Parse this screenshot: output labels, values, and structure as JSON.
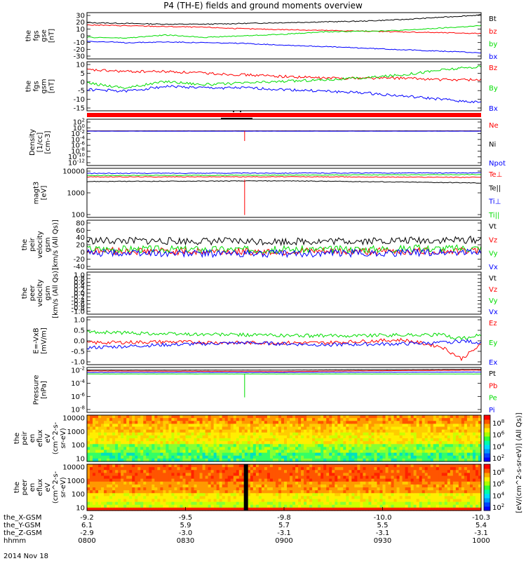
{
  "title": "P4 (TH-E) fields and ground moments overview",
  "date_label": "2014 Nov 18",
  "orbit_rows": [
    {
      "label": "the_X-GSM",
      "values": [
        "-9.2",
        "-9.5",
        "-9.8",
        "-10.0",
        "-10.3"
      ]
    },
    {
      "label": "the_Y-GSM",
      "values": [
        "6.1",
        "5.9",
        "5.7",
        "5.5",
        "5.4"
      ]
    },
    {
      "label": "the_Z-GSM",
      "values": [
        "-2.9",
        "-3.0",
        "-3.1",
        "-3.1",
        "-3.1"
      ]
    },
    {
      "label": "hhmm",
      "values": [
        "0800",
        "0830",
        "0900",
        "0930",
        "1000"
      ]
    }
  ],
  "chart_data": [
    {
      "type": "line",
      "panel": "fgs_gse",
      "ylabel": [
        "the",
        "fgs",
        "gse",
        "[nT]"
      ],
      "ylim": [
        -30,
        30
      ],
      "yticks": [
        "30",
        "20",
        "10",
        "0",
        "-10",
        "-20",
        "-30"
      ],
      "series": [
        {
          "name": "Bt",
          "color": "#000000",
          "x": [
            0,
            0.1,
            0.2,
            0.3,
            0.4,
            0.5,
            0.6,
            0.7,
            0.8,
            0.9,
            1.0
          ],
          "values": [
            17,
            16,
            15,
            15,
            16,
            17,
            18,
            19,
            21,
            24,
            27
          ]
        },
        {
          "name": "bz",
          "color": "#ff0000",
          "x": [
            0,
            0.1,
            0.2,
            0.3,
            0.4,
            0.5,
            0.6,
            0.7,
            0.8,
            0.9,
            1.0
          ],
          "values": [
            14,
            13,
            12,
            11,
            9,
            8,
            7,
            6,
            5,
            4,
            3
          ]
        },
        {
          "name": "by",
          "color": "#00dd00",
          "x": [
            0,
            0.1,
            0.2,
            0.3,
            0.4,
            0.5,
            0.6,
            0.7,
            0.8,
            0.9,
            1.0
          ],
          "values": [
            -2,
            -3,
            1,
            -2,
            0,
            2,
            5,
            6,
            7,
            10,
            13
          ]
        },
        {
          "name": "bx",
          "color": "#0000ff",
          "x": [
            0,
            0.1,
            0.2,
            0.3,
            0.4,
            0.5,
            0.6,
            0.7,
            0.8,
            0.9,
            1.0
          ],
          "values": [
            -7,
            -9,
            -8,
            -9,
            -10,
            -12,
            -14,
            -16,
            -18,
            -20,
            -22
          ]
        }
      ]
    },
    {
      "type": "line",
      "panel": "fgs_gsm",
      "ylabel": [
        "the",
        "fgs",
        "gsm",
        "[nT]"
      ],
      "ylim": [
        -18,
        12
      ],
      "yticks": [
        "10",
        "5",
        "0",
        "-5",
        "-10",
        "-15"
      ],
      "series": [
        {
          "name": "Bz",
          "color": "#ff0000",
          "x": [
            0,
            0.1,
            0.2,
            0.3,
            0.4,
            0.5,
            0.6,
            0.7,
            0.8,
            0.9,
            1.0
          ],
          "values": [
            7,
            6,
            6,
            5,
            4,
            3,
            2,
            2,
            2,
            1,
            1
          ]
        },
        {
          "name": "By",
          "color": "#00dd00",
          "x": [
            0,
            0.1,
            0.2,
            0.3,
            0.4,
            0.5,
            0.6,
            0.7,
            0.8,
            0.9,
            1.0
          ],
          "values": [
            -1,
            -4,
            0,
            -2,
            -1,
            0,
            1,
            2,
            4,
            7,
            9
          ]
        },
        {
          "name": "Bx",
          "color": "#0000ff",
          "x": [
            0,
            0.1,
            0.2,
            0.3,
            0.4,
            0.5,
            0.6,
            0.7,
            0.8,
            0.9,
            1.0
          ],
          "values": [
            -5,
            -6,
            -3,
            -4,
            -4,
            -5,
            -6,
            -7,
            -9,
            -11,
            -13
          ]
        }
      ]
    },
    {
      "type": "line",
      "panel": "density",
      "scale": "log",
      "ylabel": [
        "Density",
        "[1/cc]",
        "[cm-3]"
      ],
      "ylim_log10": [
        -14,
        3
      ],
      "yticks": [
        "10^2",
        "10^0",
        "10^-2",
        "10^-4",
        "10^-6",
        "10^-8",
        "10^-10",
        "10^-12"
      ],
      "series": [
        {
          "name": "Ne",
          "color": "#ff0000",
          "x": [
            0,
            0.5,
            1.0
          ],
          "values": [
            0.05,
            0.05,
            0.05
          ]
        },
        {
          "name": "Ni",
          "color": "#000000",
          "x": [
            0,
            0.5,
            1.0
          ],
          "values": [
            0.05,
            0.05,
            0.05
          ]
        },
        {
          "name": "Npot",
          "color": "#0000ff",
          "x": [
            0,
            0.5,
            1.0
          ],
          "values": [
            0.04,
            0.04,
            0.04
          ]
        }
      ]
    },
    {
      "type": "line",
      "panel": "temperature",
      "scale": "log",
      "ylabel": [
        "magt3",
        "[eV]"
      ],
      "ylim": [
        30,
        12000
      ],
      "yticks": [
        "10000",
        "1000",
        "100"
      ],
      "series": [
        {
          "name": "Te⊥",
          "color": "#ff0000",
          "x": [
            0,
            0.5,
            1.0
          ],
          "values": [
            4200,
            4300,
            4000
          ]
        },
        {
          "name": "Te||",
          "color": "#000000",
          "x": [
            0,
            0.5,
            1.0
          ],
          "values": [
            2400,
            2600,
            2000
          ]
        },
        {
          "name": "Ti⊥",
          "color": "#0000ff",
          "x": [
            0,
            0.5,
            1.0
          ],
          "values": [
            6500,
            6700,
            6800
          ]
        },
        {
          "name": "Ti||",
          "color": "#00dd00",
          "x": [
            0,
            0.5,
            1.0
          ],
          "values": [
            5000,
            5200,
            5600
          ]
        }
      ]
    },
    {
      "type": "line",
      "panel": "peir_velocity",
      "ylabel": [
        "the",
        "peir",
        "velocity",
        "gsm",
        "[km/s (All Qs)]"
      ],
      "ylim": [
        -40,
        80
      ],
      "yticks": [
        "80",
        "60",
        "40",
        "20",
        "0",
        "-20",
        "-40"
      ],
      "series": [
        {
          "name": "Vt",
          "color": "#000000",
          "x": [
            0,
            0.5,
            1.0
          ],
          "values": [
            30,
            28,
            32
          ]
        },
        {
          "name": "Vz",
          "color": "#ff0000",
          "x": [
            0,
            0.5,
            1.0
          ],
          "values": [
            5,
            3,
            5
          ]
        },
        {
          "name": "Vy",
          "color": "#00dd00",
          "x": [
            0,
            0.5,
            1.0
          ],
          "values": [
            10,
            8,
            12
          ]
        },
        {
          "name": "Vx",
          "color": "#0000ff",
          "x": [
            0,
            0.5,
            1.0
          ],
          "values": [
            0,
            -2,
            2
          ]
        }
      ]
    },
    {
      "type": "line",
      "panel": "peer_velocity",
      "ylabel": [
        "the",
        "peer",
        "velocity",
        "gsm",
        "[km/s (All Qs)]"
      ],
      "ylim": [
        -1,
        1
      ],
      "yticks": [
        "1.0",
        "0.8",
        "0.6",
        "0.4",
        "0.2",
        "0.0",
        "-0.2",
        "-0.4",
        "-0.6",
        "-0.8",
        "-1.0"
      ],
      "series": [
        {
          "name": "Vt",
          "color": "#000000"
        },
        {
          "name": "Vz",
          "color": "#ff0000"
        },
        {
          "name": "Vy",
          "color": "#00dd00"
        },
        {
          "name": "Vx",
          "color": "#0000ff"
        }
      ]
    },
    {
      "type": "line",
      "panel": "efield",
      "ylabel": [
        "E=-VxB",
        "[mV/m]"
      ],
      "ylim": [
        -1.2,
        1.2
      ],
      "yticks": [
        "1.0",
        "0.5",
        "0.0",
        "-0.5",
        "-1.0"
      ],
      "series": [
        {
          "name": "Ez",
          "color": "#ff0000",
          "x": [
            0,
            0.2,
            0.4,
            0.6,
            0.8,
            0.9,
            0.95,
            1.0
          ],
          "values": [
            -0.1,
            -0.05,
            -0.1,
            -0.1,
            0.05,
            -0.3,
            -0.9,
            -0.2
          ]
        },
        {
          "name": "Ey",
          "color": "#00dd00",
          "x": [
            0,
            0.2,
            0.4,
            0.6,
            0.8,
            0.9,
            0.95,
            1.0
          ],
          "values": [
            0.45,
            0.35,
            0.3,
            0.25,
            0.3,
            0.3,
            0.1,
            0.3
          ]
        },
        {
          "name": "Ex",
          "color": "#0000ff",
          "x": [
            0,
            0.2,
            0.4,
            0.6,
            0.8,
            0.9,
            0.95,
            1.0
          ],
          "values": [
            -0.35,
            -0.2,
            -0.1,
            -0.2,
            -0.15,
            -0.1,
            0.0,
            -0.1
          ]
        }
      ]
    },
    {
      "type": "line",
      "panel": "pressure",
      "scale": "log",
      "ylabel": [
        "Pressure",
        "[nPa]"
      ],
      "ylim_log10": [
        -9,
        0
      ],
      "yticks": [
        "10^-2",
        "10^-4",
        "10^-6",
        "10^-8"
      ],
      "series": [
        {
          "name": "Pt",
          "color": "#000000",
          "x": [
            0,
            0.5,
            1.0
          ],
          "values": [
            0.3,
            0.3,
            0.4
          ]
        },
        {
          "name": "Pb",
          "color": "#ff0000",
          "x": [
            0,
            0.5,
            1.0
          ],
          "values": [
            0.2,
            0.15,
            0.3
          ]
        },
        {
          "name": "Pe",
          "color": "#00dd00",
          "x": [
            0,
            0.5,
            1.0
          ],
          "values": [
            0.05,
            0.05,
            0.05
          ]
        },
        {
          "name": "Pi",
          "color": "#0000ff",
          "x": [
            0,
            0.5,
            1.0
          ],
          "values": [
            0.1,
            0.1,
            0.12
          ]
        }
      ]
    },
    {
      "type": "heatmap",
      "panel": "peir_spectrogram",
      "ylabel": [
        "the",
        "peir",
        "en",
        "eflux",
        "eV",
        "(cm^2-s-",
        "sr-eV)"
      ],
      "yticks": [
        "10000",
        "1000",
        "100",
        "10"
      ],
      "ylim": [
        5,
        25000
      ]
    },
    {
      "type": "heatmap",
      "panel": "peer_spectrogram",
      "ylabel": [
        "the",
        "peer",
        "en",
        "eflux",
        "eV",
        "(cm^2-s-",
        "sr-eV)"
      ],
      "yticks": [
        "10000",
        "1000",
        "100",
        "10"
      ],
      "ylim": [
        5,
        25000
      ]
    }
  ],
  "colorbar": {
    "label": "[eV/(cm^2-s-sr-eV)] (All Qs)]",
    "ticks": [
      "10^8",
      "10^6",
      "10^4",
      "10^2"
    ]
  },
  "colors": {
    "red": "#ff0000",
    "green": "#00dd00",
    "blue": "#0000ff",
    "black": "#000000"
  }
}
